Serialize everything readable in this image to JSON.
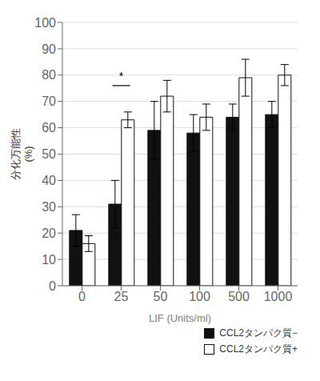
{
  "chart_data": {
    "type": "bar",
    "xlabel": "LIF (Units/ml)",
    "ylabel": "分化万能性\n(%)",
    "categories": [
      "0",
      "25",
      "50",
      "100",
      "500",
      "1000"
    ],
    "series": [
      {
        "name": "CCL2タンパク質−",
        "color": "#111111",
        "values": [
          21,
          31,
          59,
          58,
          64,
          65
        ],
        "errors": [
          6,
          9,
          11,
          7,
          5,
          5
        ]
      },
      {
        "name": "CCL2タンパク質+",
        "color": "#ffffff",
        "values": [
          16,
          63,
          72,
          64,
          79,
          80
        ],
        "errors": [
          3,
          3,
          6,
          5,
          7,
          4
        ]
      }
    ],
    "ylim": [
      0,
      100
    ],
    "yticks": [
      0,
      10,
      20,
      30,
      40,
      50,
      60,
      70,
      80,
      90,
      100
    ],
    "grid": true,
    "legend": "lower right",
    "annotations": [
      {
        "type": "bracket",
        "x": "25",
        "y": 76
      },
      {
        "text": "*",
        "x": "25",
        "y": 77.5
      }
    ]
  }
}
